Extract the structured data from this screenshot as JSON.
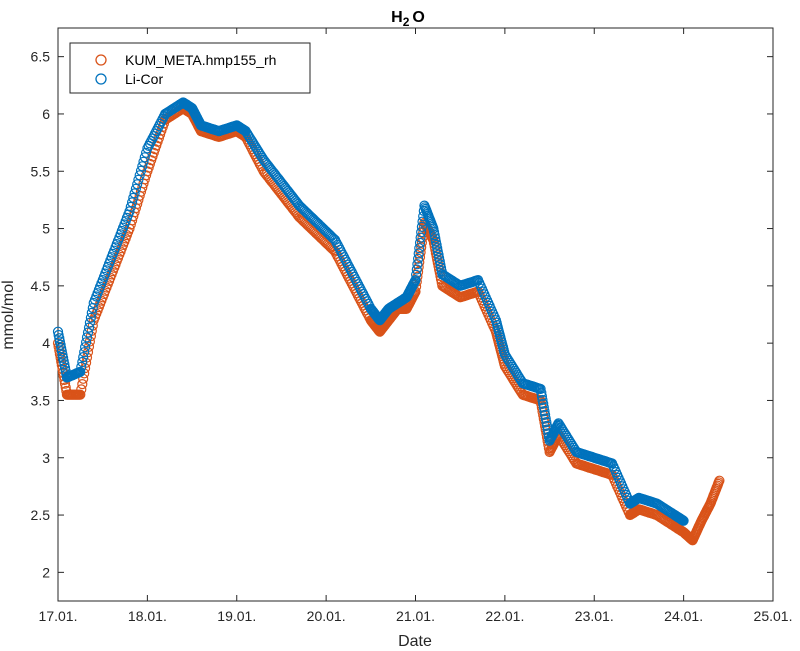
{
  "chart_data": {
    "type": "scatter",
    "title": "H",
    "title_subscript": "2",
    "title_suffix": "O",
    "xlabel": "Date",
    "ylabel": "mmol/mol",
    "xlim": [
      17.0,
      25.0
    ],
    "ylim": [
      1.75,
      6.75
    ],
    "x_ticks": [
      17,
      18,
      19,
      20,
      21,
      22,
      23,
      24,
      25
    ],
    "x_tick_labels": [
      "17.01.",
      "18.01.",
      "19.01.",
      "20.01.",
      "21.01.",
      "22.01.",
      "23.01.",
      "24.01.",
      "25.01."
    ],
    "y_ticks": [
      2,
      2.5,
      3,
      3.5,
      4,
      4.5,
      5,
      5.5,
      6,
      6.5
    ],
    "y_tick_labels": [
      "2",
      "2.5",
      "3",
      "3.5",
      "4",
      "4.5",
      "5",
      "5.5",
      "6",
      "6.5"
    ],
    "legend_position": "top-left",
    "series": [
      {
        "name": "KUM_META.hmp155_rh",
        "color": "#D95319",
        "marker": "circle",
        "x": [
          17.0,
          17.1,
          17.25,
          17.4,
          17.6,
          17.8,
          18.0,
          18.2,
          18.4,
          18.5,
          18.6,
          18.8,
          19.0,
          19.1,
          19.3,
          19.5,
          19.7,
          19.9,
          20.1,
          20.3,
          20.5,
          20.6,
          20.7,
          20.8,
          20.9,
          21.0,
          21.1,
          21.2,
          21.3,
          21.5,
          21.7,
          21.9,
          22.0,
          22.2,
          22.4,
          22.5,
          22.6,
          22.8,
          23.0,
          23.2,
          23.4,
          23.5,
          23.7,
          23.9,
          24.0,
          24.1,
          24.2,
          24.3,
          24.4
        ],
        "y": [
          4.0,
          3.55,
          3.55,
          4.2,
          4.6,
          5.0,
          5.5,
          5.95,
          6.05,
          6.0,
          5.85,
          5.8,
          5.85,
          5.8,
          5.5,
          5.3,
          5.1,
          4.95,
          4.8,
          4.5,
          4.2,
          4.1,
          4.2,
          4.3,
          4.3,
          4.45,
          5.05,
          4.9,
          4.5,
          4.4,
          4.45,
          4.1,
          3.8,
          3.55,
          3.5,
          3.05,
          3.2,
          2.95,
          2.9,
          2.85,
          2.5,
          2.55,
          2.5,
          2.4,
          2.35,
          2.28,
          2.45,
          2.6,
          2.8
        ]
      },
      {
        "name": "Li-Cor",
        "color": "#0072BD",
        "marker": "circle",
        "x": [
          17.0,
          17.1,
          17.25,
          17.4,
          17.6,
          17.8,
          18.0,
          18.2,
          18.4,
          18.5,
          18.6,
          18.8,
          19.0,
          19.1,
          19.3,
          19.5,
          19.7,
          19.9,
          20.1,
          20.3,
          20.5,
          20.6,
          20.7,
          20.8,
          20.9,
          21.0,
          21.1,
          21.2,
          21.3,
          21.5,
          21.7,
          21.9,
          22.0,
          22.2,
          22.4,
          22.5,
          22.6,
          22.8,
          23.0,
          23.2,
          23.4,
          23.5,
          23.7,
          23.9,
          24.0
        ],
        "y": [
          4.1,
          3.7,
          3.75,
          4.35,
          4.75,
          5.15,
          5.7,
          6.0,
          6.1,
          6.05,
          5.9,
          5.85,
          5.9,
          5.85,
          5.6,
          5.4,
          5.2,
          5.05,
          4.9,
          4.6,
          4.3,
          4.2,
          4.3,
          4.35,
          4.4,
          4.55,
          5.2,
          5.0,
          4.6,
          4.5,
          4.55,
          4.2,
          3.9,
          3.65,
          3.6,
          3.15,
          3.3,
          3.05,
          3.0,
          2.95,
          2.6,
          2.65,
          2.6,
          2.5,
          2.45
        ]
      }
    ]
  }
}
